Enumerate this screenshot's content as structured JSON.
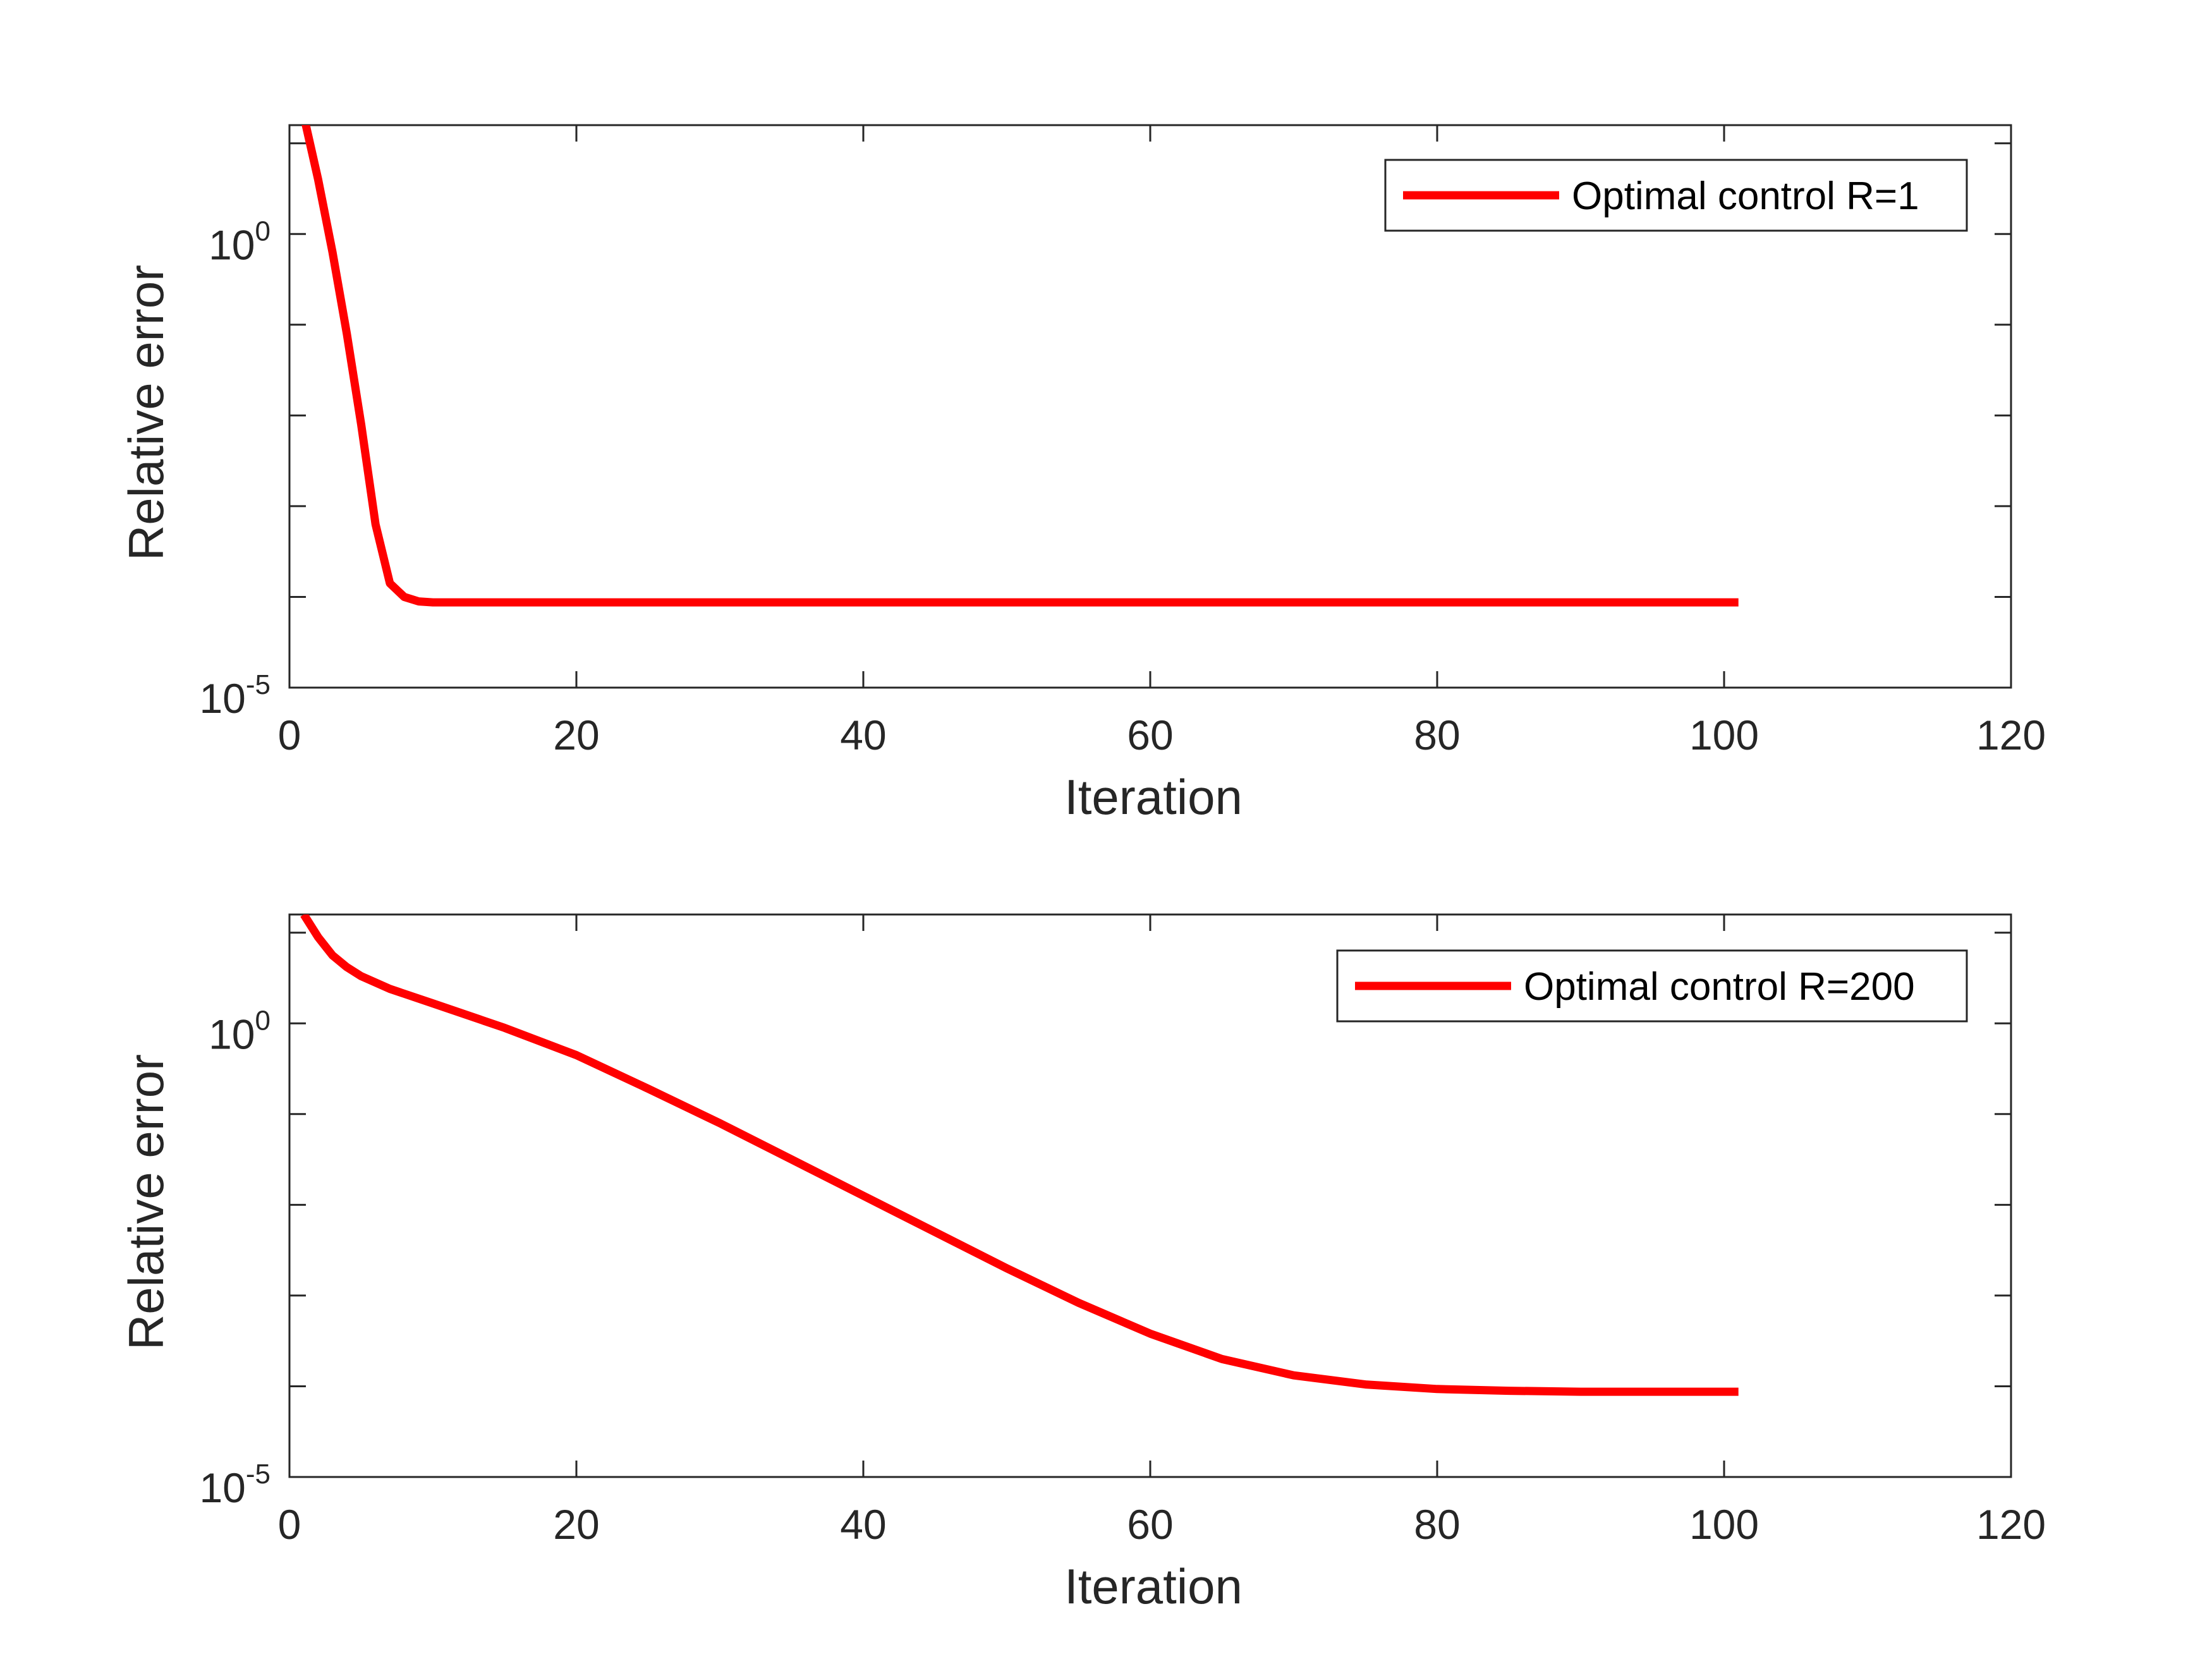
{
  "colors": {
    "series": "#ff0000",
    "axes": "#262626"
  },
  "chart_data": [
    {
      "type": "line",
      "xlabel": "Iteration",
      "ylabel": "Relative error",
      "yscale": "log",
      "xlim": [
        0,
        120
      ],
      "ylim_exp": [
        -5,
        1.2
      ],
      "xticks": [
        0,
        20,
        40,
        60,
        80,
        100,
        120
      ],
      "yticks": [
        {
          "base": "10",
          "exp": "-5",
          "value": -5
        },
        {
          "base": "10",
          "exp": "0",
          "value": 0
        }
      ],
      "grid": false,
      "legend_position": "top-right",
      "series": [
        {
          "name": "Optimal control R=1",
          "x": [
            1,
            2,
            3,
            4,
            5,
            6,
            7,
            8,
            9,
            10,
            15,
            20,
            40,
            60,
            80,
            100,
            101
          ],
          "y_exp": [
            1.3,
            0.6,
            -0.2,
            -1.1,
            -2.1,
            -3.2,
            -3.85,
            -4.0,
            -4.05,
            -4.06,
            -4.06,
            -4.06,
            -4.06,
            -4.06,
            -4.06,
            -4.06,
            -4.06
          ]
        }
      ]
    },
    {
      "type": "line",
      "xlabel": "Iteration",
      "ylabel": "Relative error",
      "yscale": "log",
      "xlim": [
        0,
        120
      ],
      "ylim_exp": [
        -5,
        1.2
      ],
      "xticks": [
        0,
        20,
        40,
        60,
        80,
        100,
        120
      ],
      "yticks": [
        {
          "base": "10",
          "exp": "-5",
          "value": -5
        },
        {
          "base": "10",
          "exp": "0",
          "value": 0
        }
      ],
      "grid": false,
      "legend_position": "top-right",
      "series": [
        {
          "name": "Optimal control R=200",
          "x": [
            1,
            2,
            3,
            4,
            5,
            7,
            10,
            15,
            20,
            25,
            30,
            35,
            40,
            45,
            50,
            55,
            60,
            65,
            70,
            75,
            80,
            85,
            90,
            95,
            100,
            101
          ],
          "y_exp": [
            1.2,
            0.95,
            0.75,
            0.62,
            0.52,
            0.38,
            0.22,
            -0.05,
            -0.35,
            -0.72,
            -1.1,
            -1.5,
            -1.9,
            -2.3,
            -2.7,
            -3.08,
            -3.42,
            -3.7,
            -3.88,
            -3.98,
            -4.03,
            -4.05,
            -4.06,
            -4.06,
            -4.06,
            -4.06
          ]
        }
      ]
    }
  ]
}
